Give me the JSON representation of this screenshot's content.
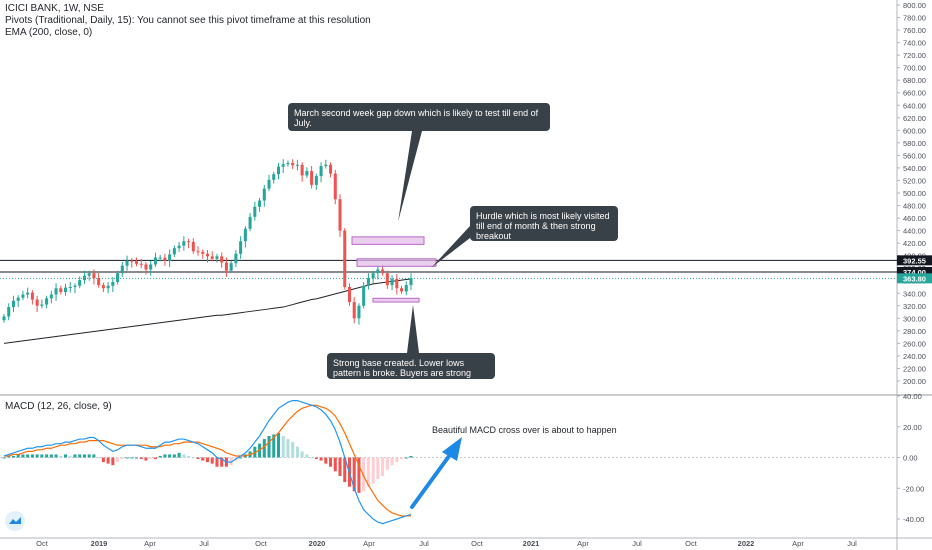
{
  "header": {
    "symbol_line": "ICICI BANK, 1W, NSE",
    "pivots_line": "Pivots (Traditional, Daily, 15): You cannot see this pivot timeframe at this resolution",
    "ema_line": "EMA (200, close, 0)"
  },
  "macd_legend": "MACD (12, 26, close, 9)",
  "annotations": {
    "march_gap": "March second week gap down which is likely to test till end of July.",
    "hurdle": "Hurdle which is most likely visited till end of month & then strong breakout",
    "strong_base": "Strong base created. Lower lows pattern is broke. Buyers are strong here.",
    "macd_cross": "Beautiful MACD cross over is about to happen"
  },
  "colors": {
    "up": "#26a69a",
    "down": "#ef5350",
    "macd_line": "#2196f3",
    "signal_line": "#ff6d00",
    "hist_pos_strong": "#26a69a",
    "hist_pos_weak": "#b2dfdb",
    "hist_neg_strong": "#ef5350",
    "hist_neg_weak": "#ffcdd2",
    "zone_fill": "#e1bee7",
    "zone_border": "#ba68c8",
    "callout_bg": "#394148",
    "arrow": "#1e88e5",
    "ema": "#1f2329",
    "price_tag": "#26a69a"
  },
  "chart_data": [
    {
      "type": "candlestick",
      "title": "ICICI BANK, 1W, NSE",
      "x_axis": {
        "tick_labels": [
          "Oct",
          "2019",
          "Apr",
          "Jul",
          "Oct",
          "2020",
          "Apr",
          "Jul",
          "Oct",
          "2021",
          "Apr",
          "Jul",
          "Oct",
          "2022",
          "Apr",
          "Jul"
        ],
        "bold_labels": [
          "2019",
          "2020",
          "2021",
          "2022"
        ]
      },
      "y_axis": {
        "ticks": [
          200,
          220,
          240,
          260,
          280,
          300,
          320,
          340,
          360,
          380,
          400,
          420,
          440,
          460,
          480,
          500,
          520,
          540,
          560,
          580,
          600,
          620,
          640,
          660,
          680,
          700,
          720,
          740,
          760,
          780,
          800
        ],
        "tick_labels": [
          "200.00",
          "220.00",
          "240.00",
          "260.00",
          "280.00",
          "300.00",
          "320.00",
          "340.00",
          "360.00",
          "380.00",
          "400.00",
          "420.00",
          "440.00",
          "460.00",
          "480.00",
          "500.00",
          "520.00",
          "540.00",
          "560.00",
          "580.00",
          "600.00",
          "620.00",
          "640.00",
          "660.00",
          "680.00",
          "700.00",
          "720.00",
          "740.00",
          "760.00",
          "780.00",
          "800.00"
        ],
        "range": [
          190,
          805
        ]
      },
      "horizontal_lines": [
        {
          "value": 392.55,
          "label": "392.55"
        },
        {
          "value": 374.0,
          "label": "374.00"
        }
      ],
      "last_price": {
        "value": 363.8,
        "label": "363.80"
      },
      "closes": [
        303,
        318,
        328,
        333,
        338,
        341,
        330,
        320,
        322,
        332,
        338,
        348,
        342,
        349,
        350,
        352,
        361,
        368,
        372,
        364,
        353,
        348,
        352,
        358,
        372,
        384,
        392,
        391,
        387,
        386,
        378,
        386,
        397,
        397,
        392,
        402,
        412,
        416,
        423,
        422,
        407,
        406,
        403,
        399,
        395,
        399,
        389,
        376,
        388,
        403,
        423,
        443,
        462,
        478,
        488,
        507,
        521,
        530,
        542,
        546,
        548,
        544,
        545,
        528,
        535,
        513,
        527,
        543,
        545,
        531,
        490,
        440,
        350,
        326,
        300,
        320,
        352,
        364,
        372,
        378,
        372,
        353,
        363,
        348,
        343,
        353,
        364
      ],
      "ema200": [
        260,
        261,
        262,
        263,
        264,
        265,
        266,
        267,
        268,
        269,
        270,
        271,
        272,
        273,
        274,
        275,
        276,
        277,
        278,
        279,
        280,
        281,
        282,
        283,
        284,
        285,
        286,
        287,
        288,
        289,
        290,
        291,
        292,
        293,
        294,
        295,
        296,
        297,
        298,
        299,
        300,
        301,
        302,
        303,
        304,
        305,
        305,
        306,
        307,
        308,
        309,
        310,
        311,
        312,
        313,
        314,
        315,
        316,
        317,
        318,
        320,
        322,
        324,
        326,
        328,
        330,
        331,
        333,
        335,
        337,
        339,
        341,
        343,
        345,
        347,
        349,
        351,
        353,
        355,
        356,
        357,
        358,
        359,
        360,
        361,
        362,
        363
      ],
      "zones": [
        {
          "name": "gap zone",
          "top": 430,
          "bottom": 418
        },
        {
          "name": "hurdle zone",
          "top": 395,
          "bottom": 383
        },
        {
          "name": "base zone",
          "top": 332,
          "bottom": 326
        }
      ]
    },
    {
      "type": "macd",
      "title": "MACD (12, 26, close, 9)",
      "y_axis": {
        "ticks": [
          -40,
          -20,
          0,
          20,
          40
        ],
        "tick_labels": [
          "-40.00",
          "-20.00",
          "0.00",
          "20.00",
          "40.00"
        ],
        "range": [
          -48,
          42
        ]
      },
      "macd": [
        1,
        2,
        3,
        4,
        5,
        6,
        6,
        7,
        7,
        8,
        8,
        9,
        9,
        10,
        10,
        11,
        12,
        12,
        13,
        13,
        11,
        8,
        6,
        4,
        5,
        7,
        8,
        8,
        8,
        7,
        6,
        6,
        6,
        8,
        10,
        10,
        11,
        12,
        12,
        11,
        10,
        9,
        7,
        5,
        3,
        0,
        -1,
        -3,
        -3,
        -1,
        1,
        3,
        6,
        10,
        14,
        19,
        24,
        28,
        32,
        34,
        36,
        37,
        37,
        36,
        35,
        34,
        33,
        31,
        28,
        24,
        18,
        10,
        0,
        -10,
        -20,
        -28,
        -34,
        -37,
        -40,
        -42,
        -43,
        -42,
        -41,
        -40,
        -39,
        -38,
        -37
      ],
      "signal": [
        1,
        1,
        2,
        2,
        3,
        4,
        4,
        5,
        5,
        6,
        6,
        7,
        8,
        8,
        9,
        9,
        10,
        10,
        11,
        11,
        11,
        11,
        10,
        9,
        8,
        8,
        8,
        8,
        8,
        8,
        8,
        7,
        7,
        7,
        8,
        8,
        9,
        9,
        10,
        10,
        10,
        10,
        9,
        8,
        7,
        6,
        5,
        3,
        2,
        1,
        1,
        1,
        2,
        3,
        5,
        7,
        10,
        13,
        16,
        20,
        24,
        27,
        30,
        32,
        33,
        34,
        34,
        33,
        32,
        30,
        27,
        22,
        16,
        9,
        2,
        -5,
        -12,
        -18,
        -23,
        -28,
        -31,
        -34,
        -36,
        -37,
        -38,
        -38,
        -38
      ]
    }
  ]
}
